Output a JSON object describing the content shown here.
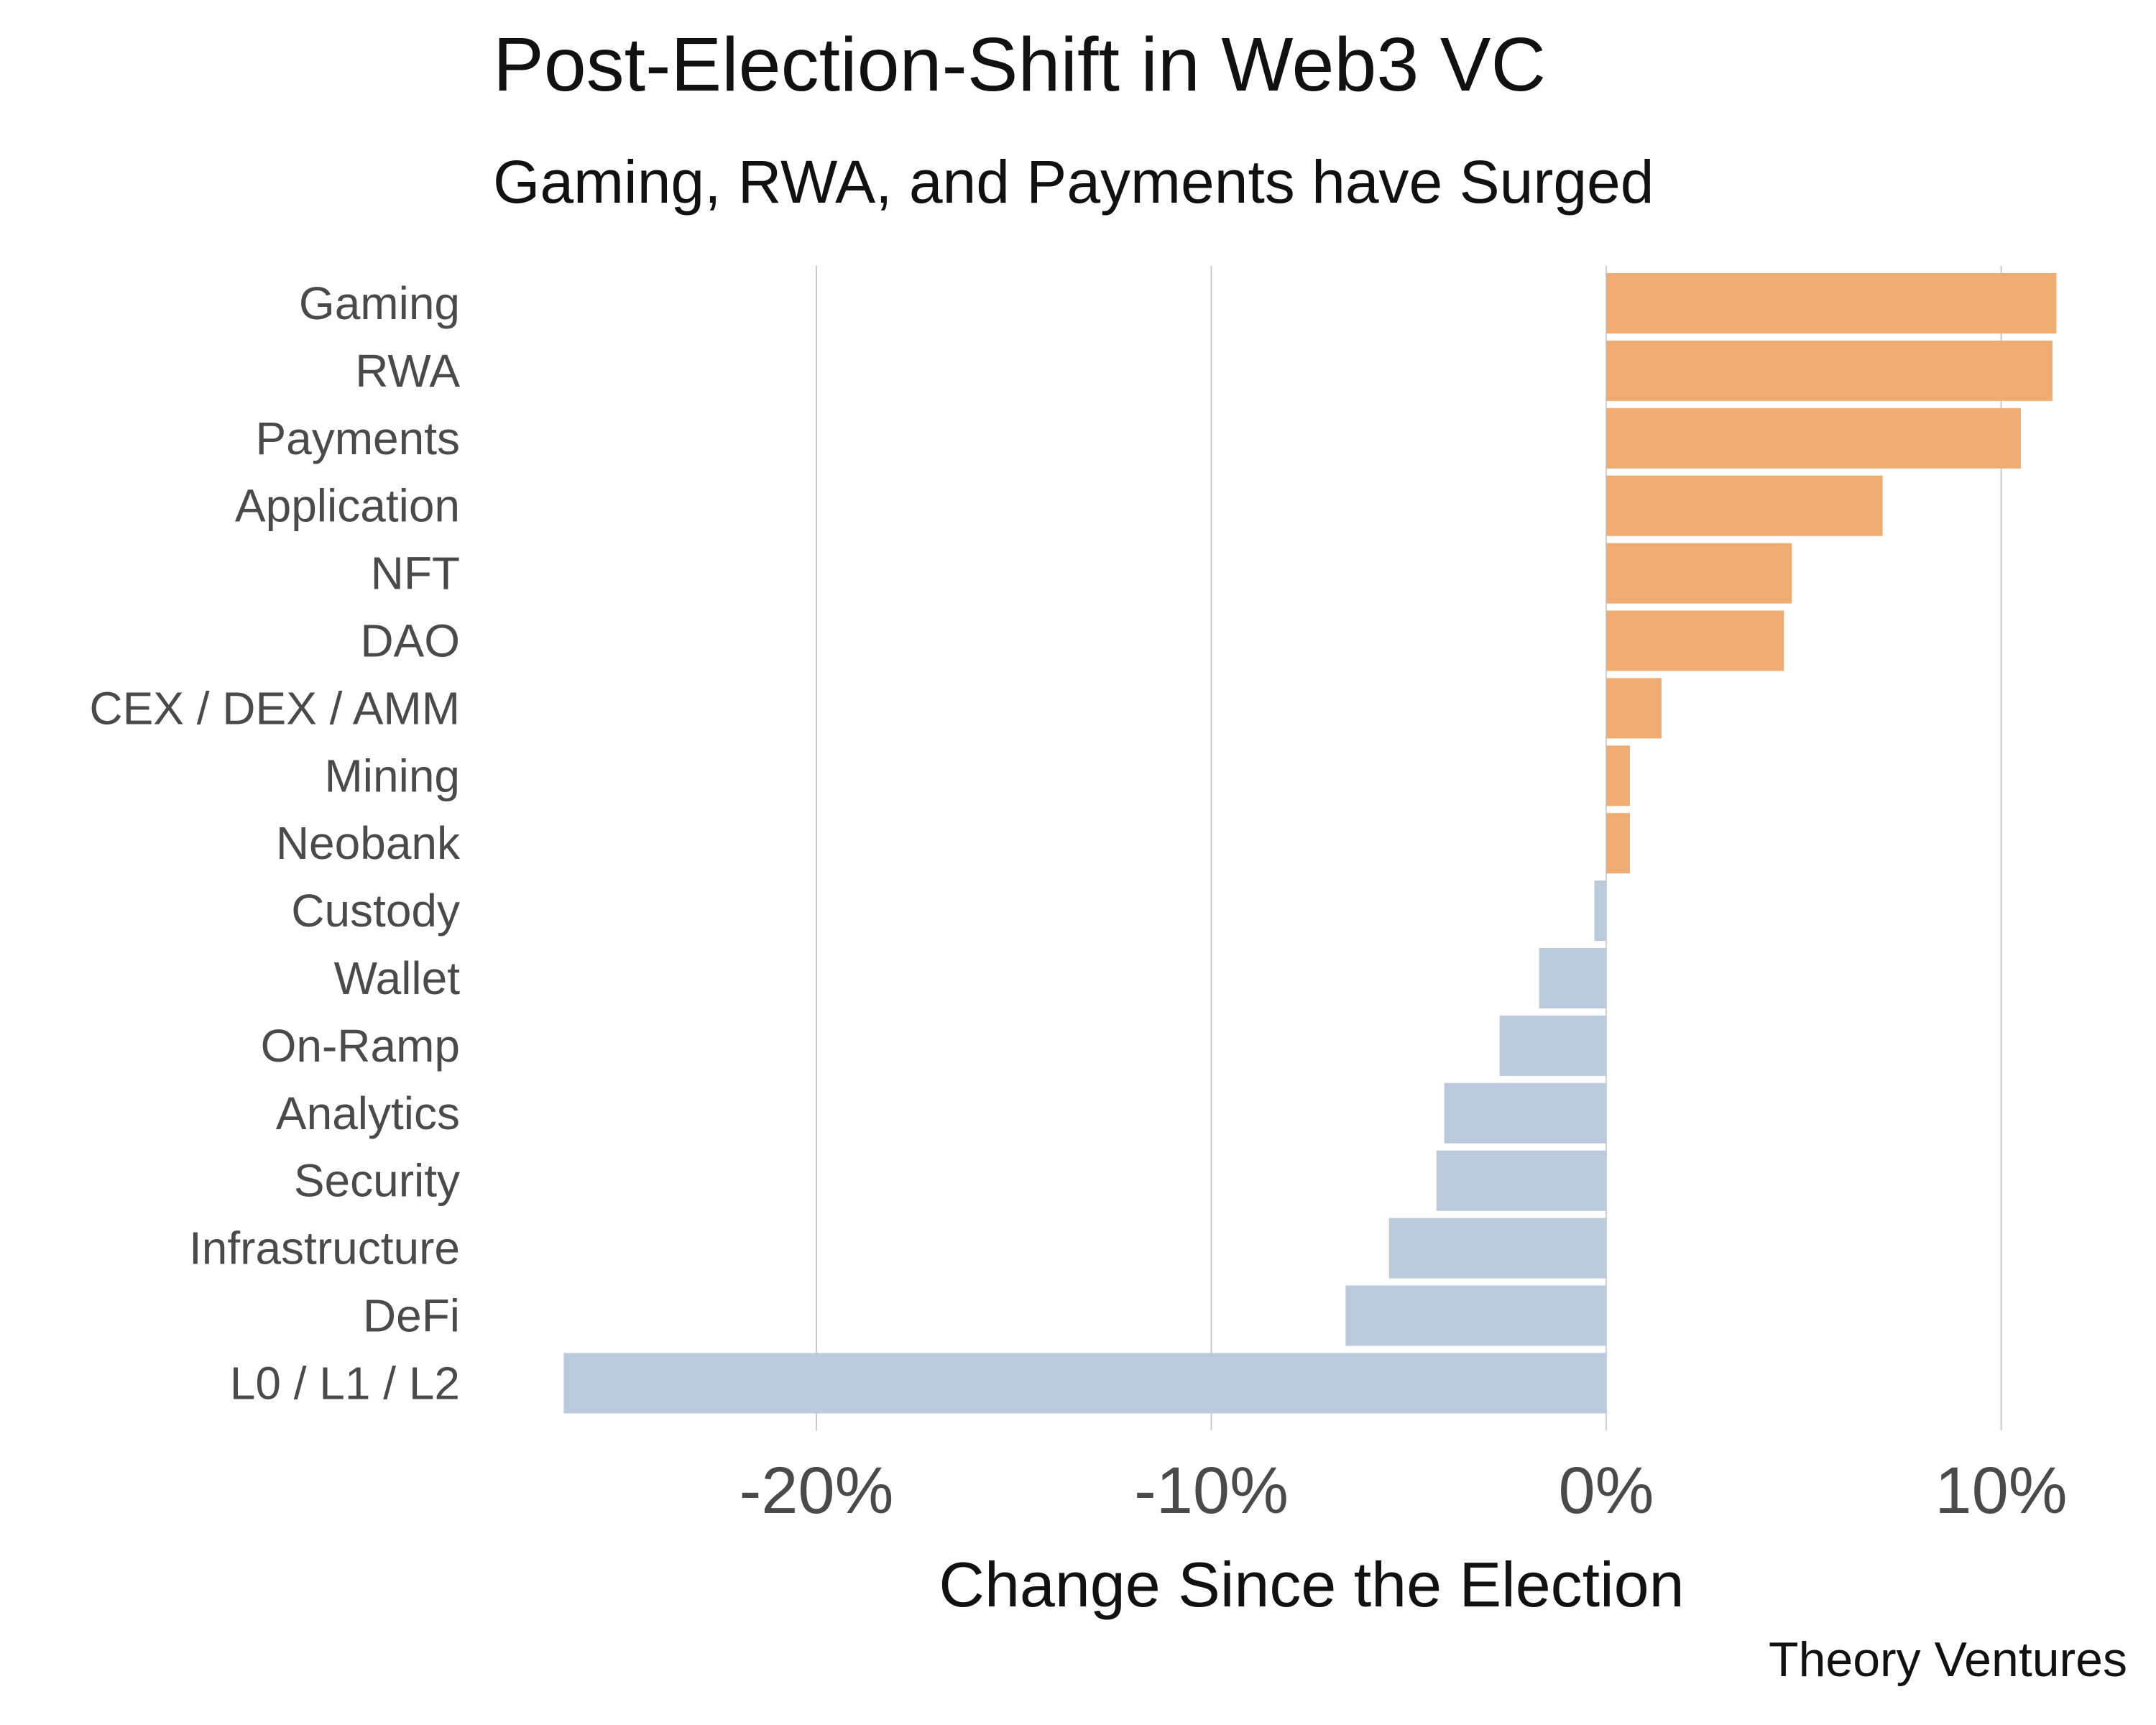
{
  "chart_data": {
    "type": "bar",
    "orientation": "horizontal",
    "title": "Post-Election-Shift in Web3 VC",
    "subtitle": "Gaming, RWA, and Payments have Surged",
    "xlabel": "Change Since the Election",
    "ylabel": "",
    "source": "Theory Ventures",
    "categories": [
      "Gaming",
      "RWA",
      "Payments",
      "Application",
      "NFT",
      "DAO",
      "CEX / DEX / AMM",
      "Mining",
      "Neobank",
      "Custody",
      "Wallet",
      "On-Ramp",
      "Analytics",
      "Security",
      "Infrastructure",
      "DeFi",
      "L0 / L1 / L2"
    ],
    "values": [
      11.4,
      11.3,
      10.5,
      7.0,
      4.7,
      4.5,
      1.4,
      0.6,
      0.6,
      -0.3,
      -1.7,
      -2.7,
      -4.1,
      -4.3,
      -5.5,
      -6.6,
      -26.4
    ],
    "xlim": [
      -26.5,
      11.5
    ],
    "xticks": [
      -20,
      -10,
      0,
      10
    ],
    "xtick_labels": [
      "-20%",
      "-10%",
      "0%",
      "10%"
    ],
    "grid": "vertical",
    "colors": {
      "positive": "#EEAC72",
      "negative": "#BAC9DC",
      "grid": "#c8c8c8",
      "zero_line": "#d0d0d0"
    }
  }
}
